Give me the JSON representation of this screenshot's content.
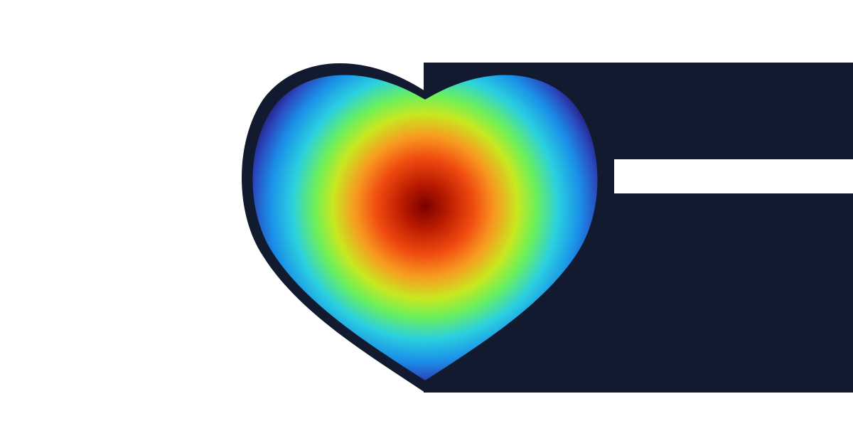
{
  "colors": {
    "background": "#ffffff",
    "panel": "#111a2e",
    "outline": "#111a2e",
    "gradient_stops": [
      "#7a0000",
      "#b81a00",
      "#f04a10",
      "#f89a20",
      "#c8e820",
      "#6cf05a",
      "#2ad0e0",
      "#1a90e8",
      "#2a4cc0",
      "#241a7a"
    ]
  },
  "icons": {
    "main": "heart-icon"
  }
}
